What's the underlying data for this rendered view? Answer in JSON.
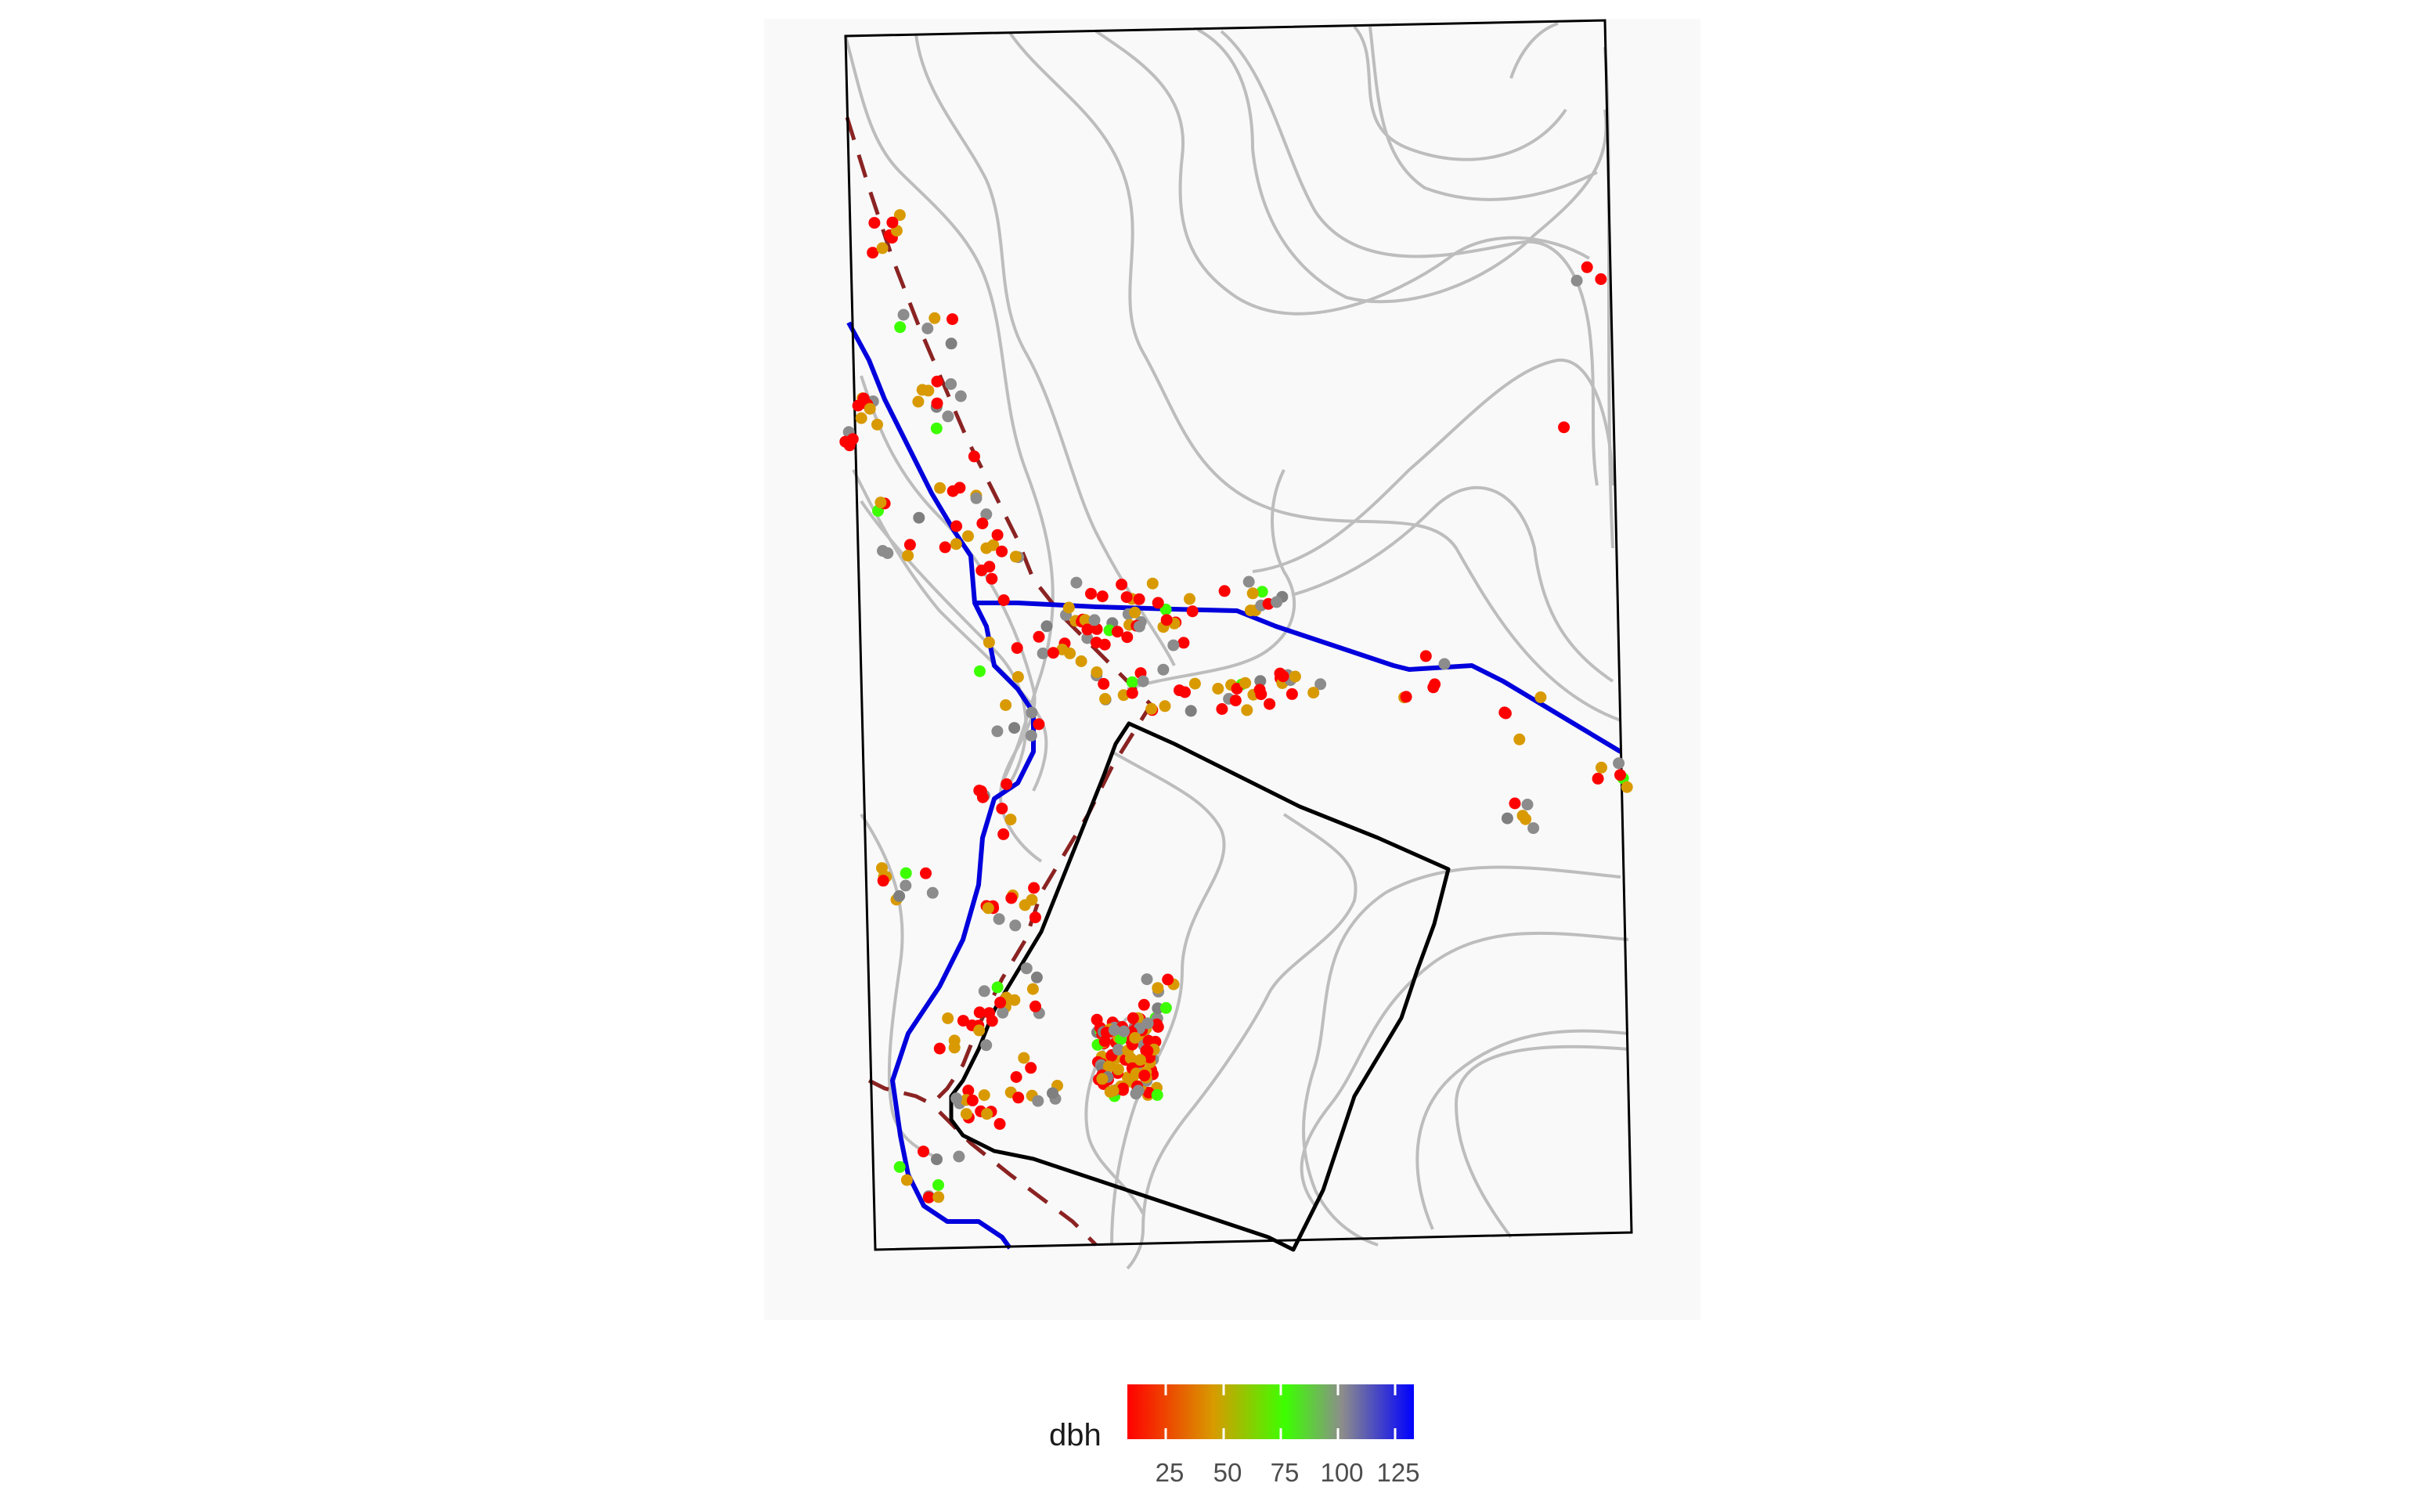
{
  "chart_data": {
    "type": "scatter",
    "title": "",
    "xlabel": "",
    "ylabel": "",
    "legend": {
      "title": "dbh",
      "position": "bottom",
      "ticks": [
        "25",
        "50",
        "75",
        "100",
        "125"
      ],
      "range": [
        8,
        133
      ],
      "tick_values": [
        25,
        50,
        75,
        100,
        125
      ],
      "gradient": [
        "#ff0000",
        "#d89a00",
        "#3cff00",
        "#8c8c8c",
        "#0000ff"
      ]
    },
    "layers": {
      "contours": "#bdbdbd",
      "stream": "#0000dd",
      "trail": "#8b2323",
      "plot_boundary": "#000000",
      "background": "#f9f9f9"
    },
    "dbh_scale": {
      "na_color": "#7f7f7f",
      "max_color": "#000000"
    }
  }
}
